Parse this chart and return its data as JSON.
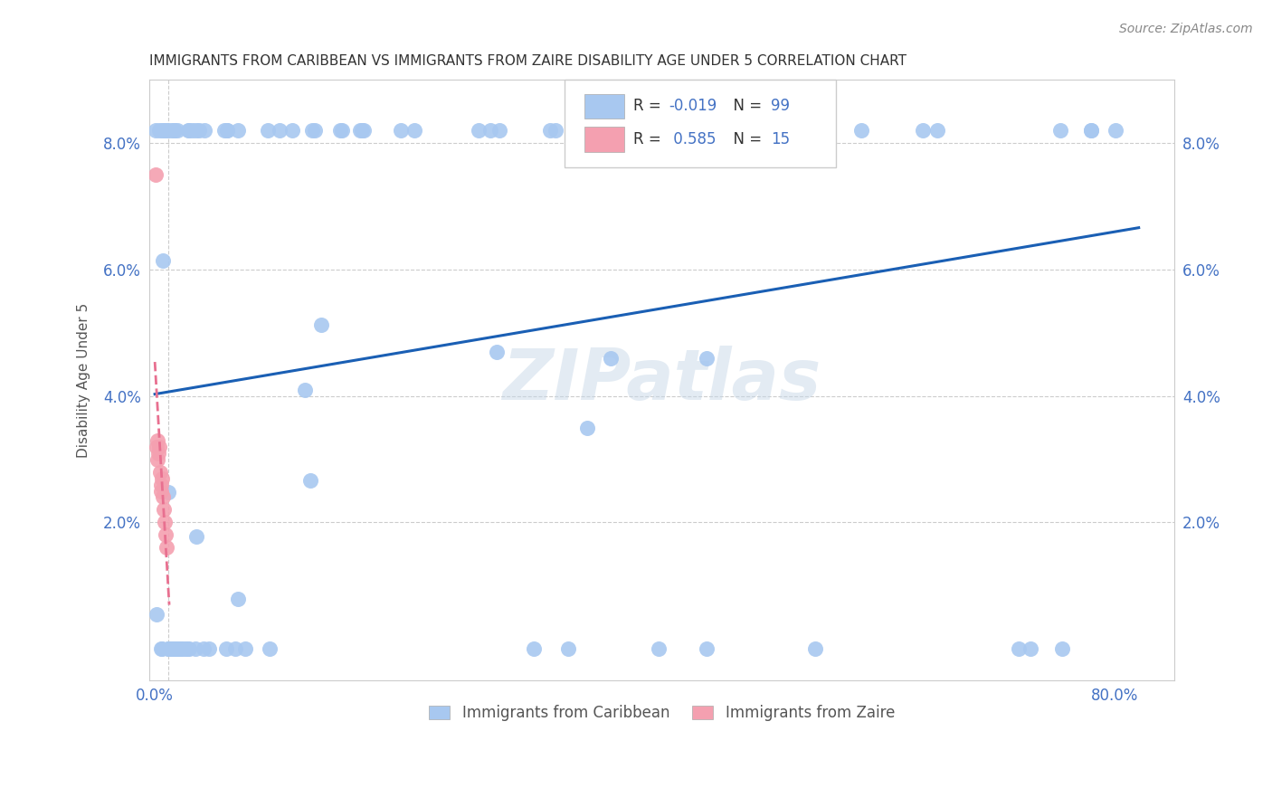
{
  "title": "IMMIGRANTS FROM CARIBBEAN VS IMMIGRANTS FROM ZAIRE DISABILITY AGE UNDER 5 CORRELATION CHART",
  "source": "Source: ZipAtlas.com",
  "ylabel": "Disability Age Under 5",
  "y_ticks": [
    0.0,
    0.02,
    0.04,
    0.06,
    0.08
  ],
  "y_tick_labels": [
    "",
    "2.0%",
    "4.0%",
    "6.0%",
    "8.0%"
  ],
  "x_ticks": [
    0.0,
    0.2,
    0.4,
    0.6,
    0.8
  ],
  "x_tick_labels": [
    "0.0%",
    "",
    "",
    "",
    "80.0%"
  ],
  "xlim": [
    -0.005,
    0.85
  ],
  "ylim": [
    -0.005,
    0.09
  ],
  "caribbean_color": "#a8c8f0",
  "zaire_color": "#f4a0b0",
  "regression_caribbean_color": "#1a5fb4",
  "regression_zaire_color": "#e87090",
  "watermark": "ZIPatlas",
  "R_caribbean": -0.019,
  "N_caribbean": 99,
  "R_zaire": 0.585,
  "N_zaire": 15,
  "background_color": "#ffffff",
  "grid_color": "#cccccc",
  "title_color": "#333333",
  "tick_label_color": "#4472c4",
  "legend_label_color": "#4472c4",
  "legend_text_color": "#333333",
  "source_color": "#888888"
}
